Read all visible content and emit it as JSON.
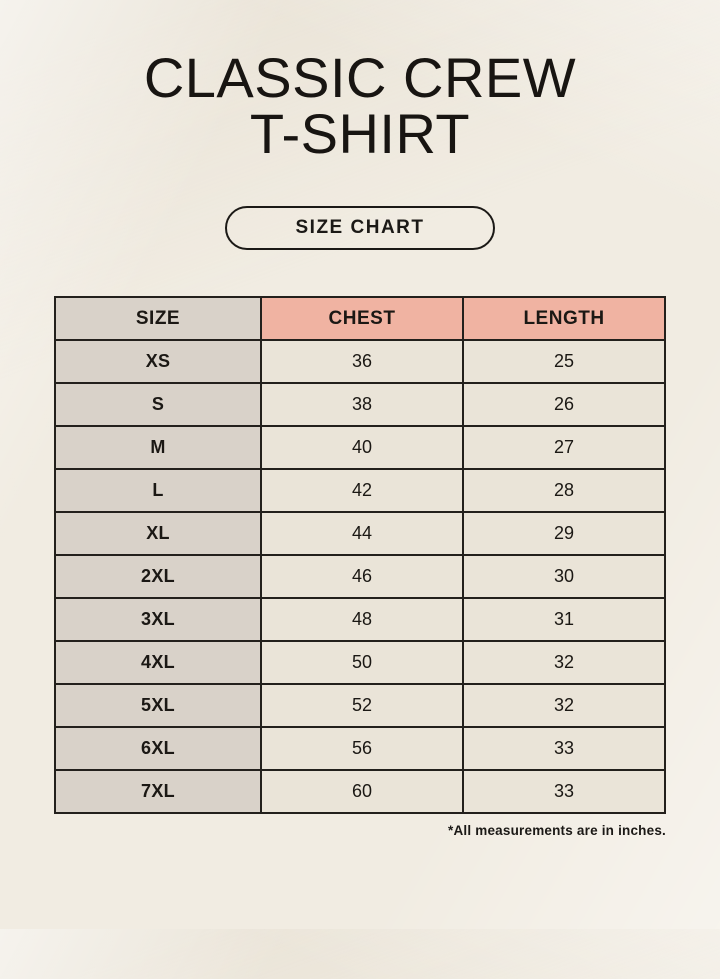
{
  "page": {
    "title_line1": "CLASSIC CREW",
    "title_line2": "T-SHIRT",
    "badge_label": "SIZE CHART"
  },
  "chart_data": {
    "type": "table",
    "title": "SIZE CHART",
    "columns": [
      "SIZE",
      "CHEST",
      "LENGTH"
    ],
    "rows": [
      [
        "XS",
        36,
        25
      ],
      [
        "S",
        38,
        26
      ],
      [
        "M",
        40,
        27
      ],
      [
        "L",
        42,
        28
      ],
      [
        "XL",
        44,
        29
      ],
      [
        "2XL",
        46,
        30
      ],
      [
        "3XL",
        48,
        31
      ],
      [
        "4XL",
        50,
        32
      ],
      [
        "5XL",
        52,
        32
      ],
      [
        "6XL",
        56,
        33
      ],
      [
        "7XL",
        60,
        33
      ]
    ],
    "units": "inches",
    "note": "*All measurements are in inches."
  },
  "colors": {
    "background": "#f1ece2",
    "table_border": "#23201c",
    "header_accent": "#f0b3a2",
    "size_column_bg": "#d9d2c9",
    "value_cell_bg": "#eae4d8",
    "text": "#1b1814"
  }
}
